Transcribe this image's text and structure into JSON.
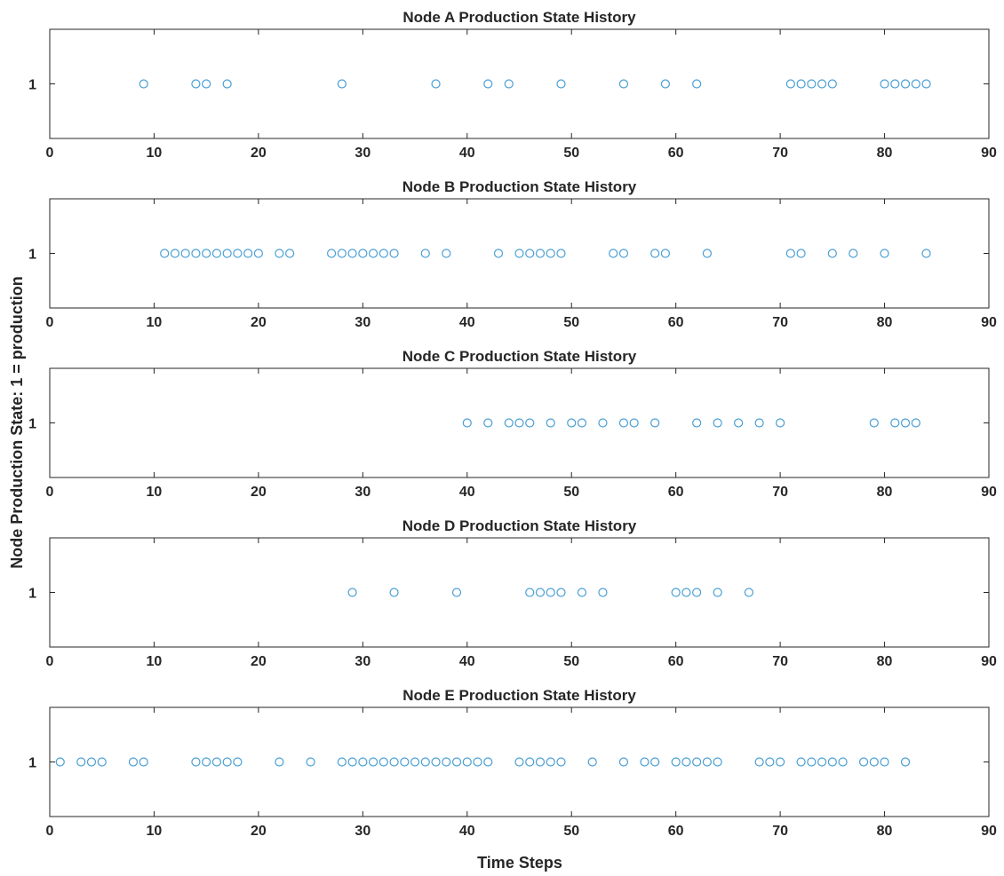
{
  "colors": {
    "marker": "#4a9fd4",
    "axis": "#262626",
    "background": "#ffffff"
  },
  "chart_data": [
    {
      "type": "scatter",
      "title": "Node A Production State History",
      "xlim": [
        0,
        90
      ],
      "xticks": [
        0,
        10,
        20,
        30,
        40,
        50,
        60,
        70,
        80,
        90
      ],
      "yticks": [
        1
      ],
      "ylim": [
        0,
        2
      ],
      "grid": false,
      "marker": "open-circle",
      "x": [
        9,
        14,
        15,
        17,
        28,
        37,
        42,
        44,
        49,
        55,
        59,
        62,
        71,
        72,
        73,
        74,
        75,
        80,
        81,
        82,
        83,
        84
      ],
      "y": 1
    },
    {
      "type": "scatter",
      "title": "Node B Production State History",
      "xlim": [
        0,
        90
      ],
      "xticks": [
        0,
        10,
        20,
        30,
        40,
        50,
        60,
        70,
        80,
        90
      ],
      "yticks": [
        1
      ],
      "ylim": [
        0,
        2
      ],
      "grid": false,
      "marker": "open-circle",
      "x": [
        11,
        12,
        13,
        14,
        15,
        16,
        17,
        18,
        19,
        20,
        22,
        23,
        27,
        28,
        29,
        30,
        31,
        32,
        33,
        36,
        38,
        43,
        45,
        46,
        47,
        48,
        49,
        54,
        55,
        58,
        59,
        63,
        71,
        72,
        75,
        77,
        80,
        84
      ],
      "y": 1
    },
    {
      "type": "scatter",
      "title": "Node C Production State History",
      "xlim": [
        0,
        90
      ],
      "xticks": [
        0,
        10,
        20,
        30,
        40,
        50,
        60,
        70,
        80,
        90
      ],
      "yticks": [
        1
      ],
      "ylim": [
        0,
        2
      ],
      "grid": false,
      "marker": "open-circle",
      "x": [
        40,
        42,
        44,
        45,
        46,
        48,
        50,
        51,
        53,
        55,
        56,
        58,
        62,
        64,
        66,
        68,
        70,
        79,
        81,
        82,
        83
      ],
      "y": 1
    },
    {
      "type": "scatter",
      "title": "Node D Production State History",
      "xlim": [
        0,
        90
      ],
      "xticks": [
        0,
        10,
        20,
        30,
        40,
        50,
        60,
        70,
        80,
        90
      ],
      "yticks": [
        1
      ],
      "ylim": [
        0,
        2
      ],
      "grid": false,
      "marker": "open-circle",
      "x": [
        29,
        33,
        39,
        46,
        47,
        48,
        49,
        51,
        53,
        60,
        61,
        62,
        64,
        67
      ],
      "y": 1
    },
    {
      "type": "scatter",
      "title": "Node E Production State History",
      "xlim": [
        0,
        90
      ],
      "xticks": [
        0,
        10,
        20,
        30,
        40,
        50,
        60,
        70,
        80,
        90
      ],
      "yticks": [
        1
      ],
      "ylim": [
        0,
        2
      ],
      "grid": false,
      "marker": "open-circle",
      "x": [
        1,
        3,
        4,
        5,
        8,
        9,
        14,
        15,
        16,
        17,
        18,
        22,
        25,
        28,
        29,
        30,
        31,
        32,
        33,
        34,
        35,
        36,
        37,
        38,
        39,
        40,
        41,
        42,
        45,
        46,
        47,
        48,
        49,
        52,
        55,
        57,
        58,
        60,
        61,
        62,
        63,
        64,
        68,
        69,
        70,
        72,
        73,
        74,
        75,
        76,
        78,
        79,
        80,
        82
      ],
      "y": 1
    }
  ],
  "shared_labels": {
    "ylabel": "Node Production State: 1 = production",
    "xlabel": "Time Steps"
  }
}
